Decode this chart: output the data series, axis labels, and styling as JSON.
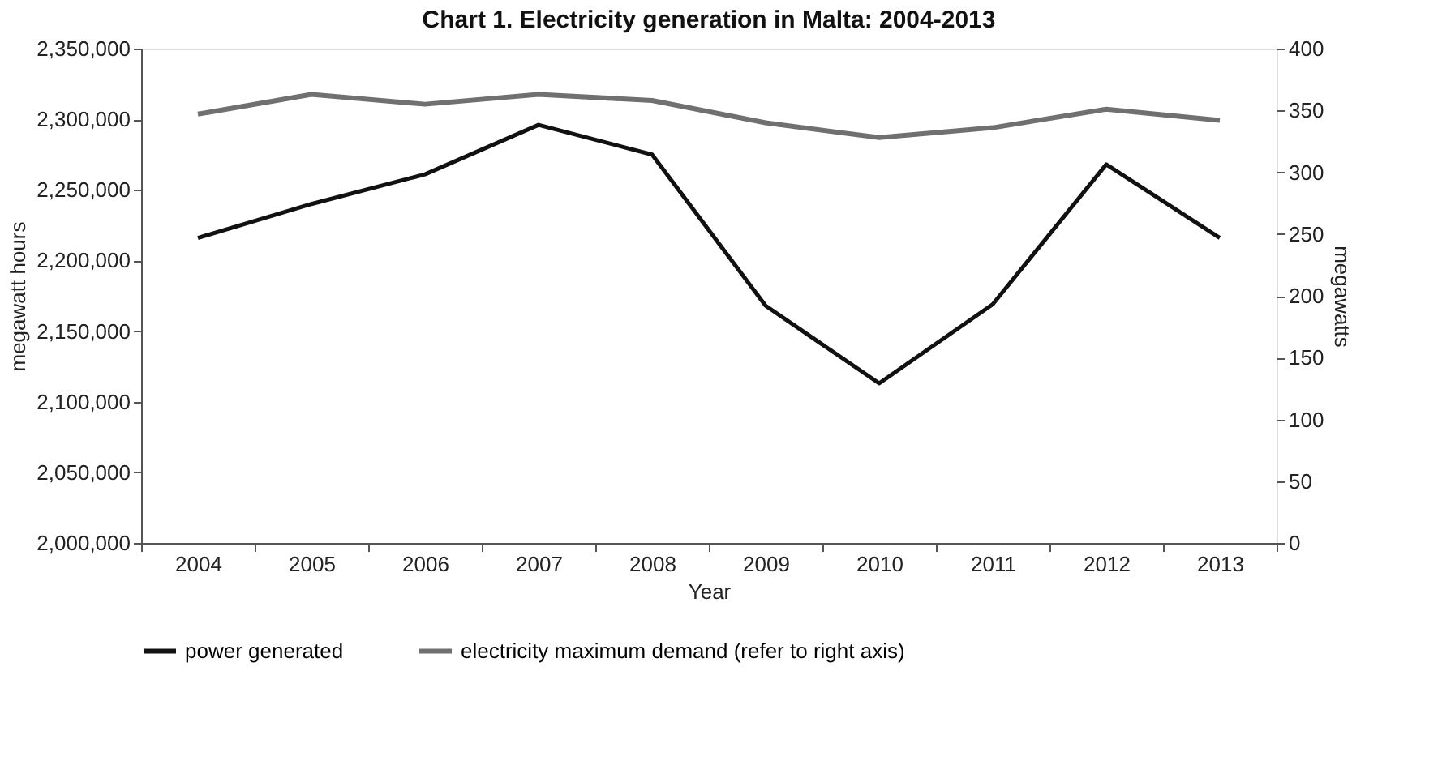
{
  "chart_data": {
    "type": "line",
    "title": "Chart 1. Electricity generation in Malta: 2004-2013",
    "xlabel": "Year",
    "ylabel": "megawatt hours",
    "y2label": "megawatts",
    "categories": [
      "2004",
      "2005",
      "2006",
      "2007",
      "2008",
      "2009",
      "2010",
      "2011",
      "2012",
      "2013"
    ],
    "series": [
      {
        "name": "power generated",
        "color": "#111111",
        "values": [
          2216000,
          2240000,
          2261000,
          2296000,
          2275000,
          2168000,
          2113000,
          2169000,
          2268000,
          2216000
        ]
      },
      {
        "name": "electricity maximum demand (refer to right axis)",
        "color": "#707070",
        "axis": "y2",
        "values": [
          347,
          363,
          355,
          363,
          358,
          340,
          328,
          336,
          351,
          342
        ]
      }
    ],
    "ylim": [
      2000000,
      2350000
    ],
    "yticks": [
      {
        "value": 2000000,
        "label": "2,000,000"
      },
      {
        "value": 2050000,
        "label": "2,050,000"
      },
      {
        "value": 2100000,
        "label": "2,100,000"
      },
      {
        "value": 2150000,
        "label": "2,150,000"
      },
      {
        "value": 2200000,
        "label": "2,200,000"
      },
      {
        "value": 2250000,
        "label": "2,250,000"
      },
      {
        "value": 2300000,
        "label": "2,300,000"
      },
      {
        "value": 2350000,
        "label": "2,350,000"
      }
    ],
    "y2lim": [
      0,
      400
    ],
    "y2ticks": [
      0,
      50,
      100,
      150,
      200,
      250,
      300,
      350,
      400
    ],
    "grid": false,
    "legend": "bottom",
    "marker": "none",
    "line_style": "solid"
  }
}
